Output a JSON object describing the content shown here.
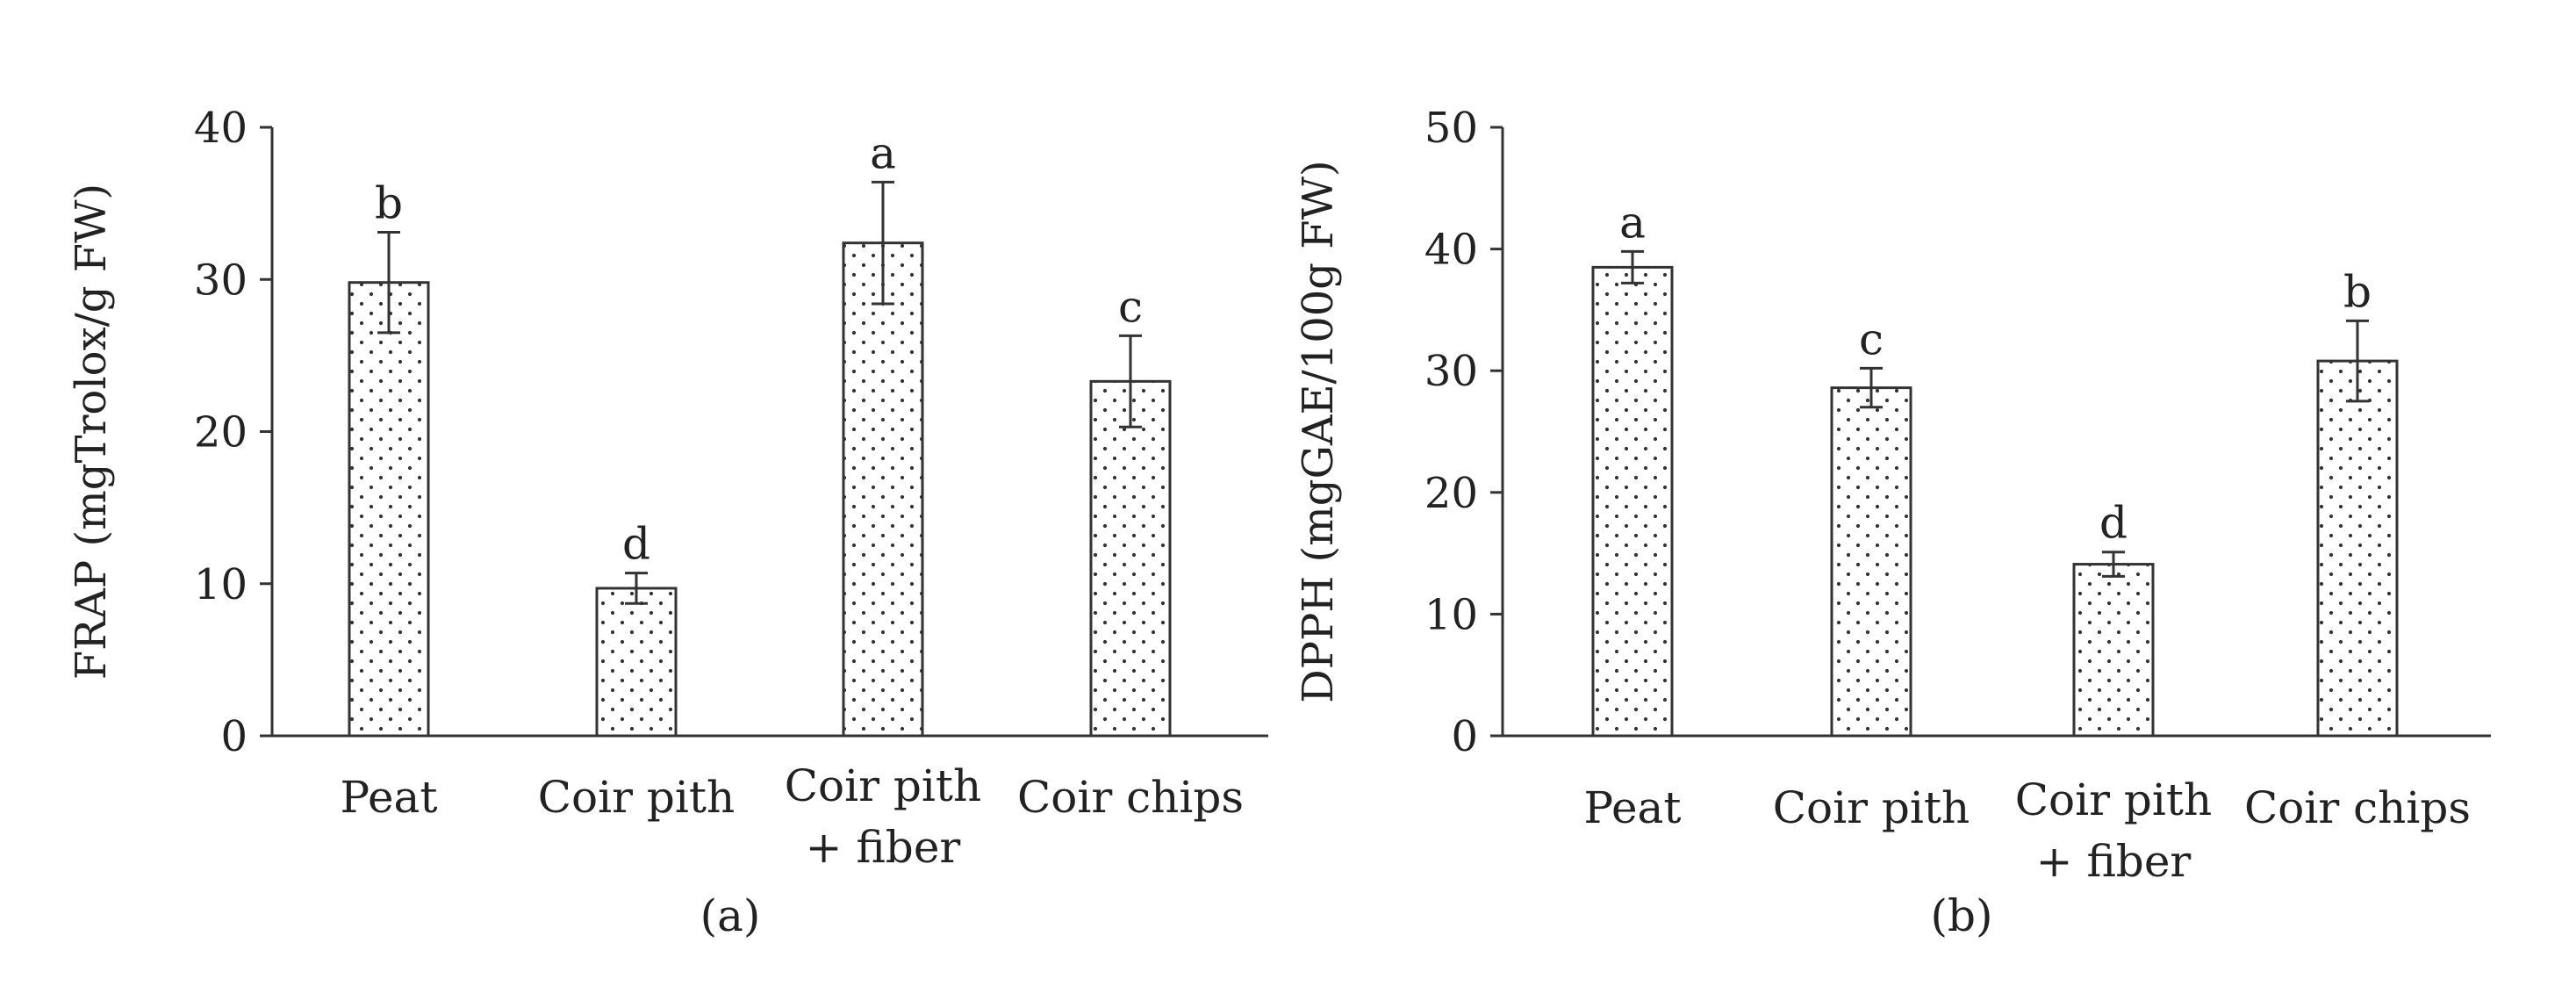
{
  "chart_data": [
    {
      "type": "bar",
      "panel_label": "(a)",
      "ylabel": "FRAP  (mgTrolox/g FW)",
      "xlabel": "",
      "ylim": [
        0,
        40
      ],
      "yticks": [
        0,
        10,
        20,
        30,
        40
      ],
      "categories": [
        [
          "Peat"
        ],
        [
          "Coir pith"
        ],
        [
          "Coir pith",
          "+ fiber"
        ],
        [
          "Coir chips"
        ]
      ],
      "values": [
        29.8,
        9.7,
        32.4,
        23.3
      ],
      "errors": [
        3.3,
        1.0,
        4.0,
        3.0
      ],
      "significance": [
        "b",
        "d",
        "a",
        "c"
      ],
      "bar_color": "#ffffff",
      "bar_stroke": "#333333",
      "pattern": "dots"
    },
    {
      "type": "bar",
      "panel_label": "(b)",
      "ylabel": "DPPH  (mgGAE/100g FW)",
      "xlabel": "",
      "ylim": [
        0,
        50
      ],
      "yticks": [
        0,
        10,
        20,
        30,
        40,
        50
      ],
      "categories": [
        [
          "Peat"
        ],
        [
          "Coir pith"
        ],
        [
          "Coir pith",
          "+ fiber"
        ],
        [
          "Coir chips"
        ]
      ],
      "values": [
        38.5,
        28.6,
        14.1,
        30.8
      ],
      "errors": [
        1.3,
        1.6,
        1.0,
        3.3
      ],
      "significance": [
        "a",
        "c",
        "d",
        "b"
      ],
      "bar_color": "#ffffff",
      "bar_stroke": "#333333",
      "pattern": "dots"
    }
  ]
}
